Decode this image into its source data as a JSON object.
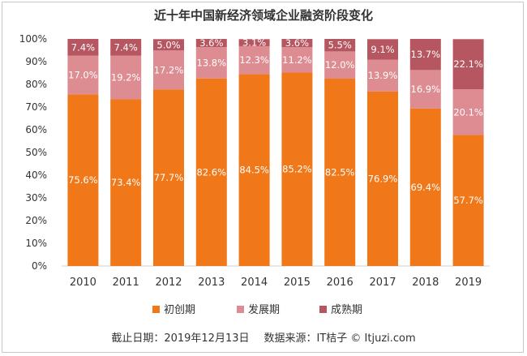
{
  "chart_data": {
    "type": "bar",
    "stacked": true,
    "title": "近十年中国新经济领域企业融资阶段变化",
    "categories": [
      "2010",
      "2011",
      "2012",
      "2013",
      "2014",
      "2015",
      "2016",
      "2017",
      "2018",
      "2019"
    ],
    "series": [
      {
        "name": "初创期",
        "color": "#F07819",
        "values": [
          75.6,
          73.4,
          77.7,
          82.6,
          84.5,
          85.2,
          82.5,
          76.9,
          69.4,
          57.7
        ],
        "labels": [
          "75.6%",
          "73.4%",
          "77.7%",
          "82.6%",
          "84.5%",
          "85.2%",
          "82.5%",
          "76.9%",
          "69.4%",
          "57.7%"
        ]
      },
      {
        "name": "发展期",
        "color": "#DD8C92",
        "values": [
          17.0,
          19.2,
          17.2,
          13.8,
          12.3,
          11.2,
          12.0,
          13.9,
          16.9,
          20.1
        ],
        "labels": [
          "17.0%",
          "19.2%",
          "17.2%",
          "13.8%",
          "12.3%",
          "11.2%",
          "12.0%",
          "13.9%",
          "16.9%",
          "20.1%"
        ]
      },
      {
        "name": "成熟期",
        "color": "#B65661",
        "values": [
          7.4,
          7.4,
          5.0,
          3.6,
          3.1,
          3.6,
          5.5,
          9.1,
          13.7,
          22.1
        ],
        "labels": [
          "7.4%",
          "7.4%",
          "5.0%",
          "3.6%",
          "3.1%",
          "3.6%",
          "5.5%",
          "9.1%",
          "13.7%",
          "22.1%"
        ]
      }
    ],
    "ylim": [
      0,
      100
    ],
    "yticks": [
      "0%",
      "10%",
      "20%",
      "30%",
      "40%",
      "50%",
      "60%",
      "70%",
      "80%",
      "90%",
      "100%"
    ],
    "legend_position": "bottom",
    "grid": false
  },
  "footer": {
    "date_text": "截止日期：2019年12月13日",
    "source_text": "数据来源：IT桔子 © Itjuzi.com"
  }
}
